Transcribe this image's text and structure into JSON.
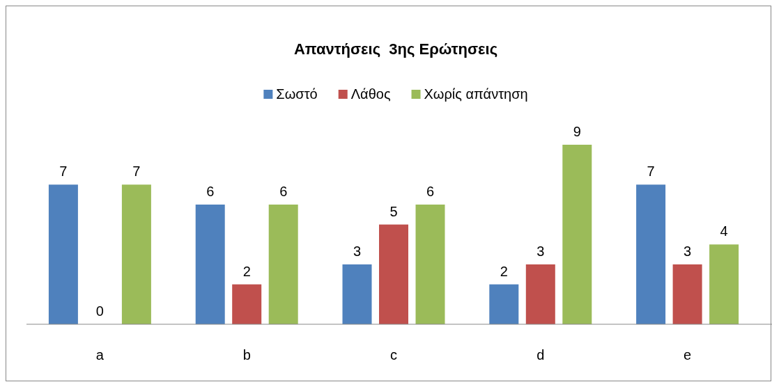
{
  "chart_data": {
    "type": "bar",
    "title": "Απαντήσεις  3ης Ερώτησεις",
    "categories": [
      "a",
      "b",
      "c",
      "d",
      "e"
    ],
    "series": [
      {
        "name": "Σωστό",
        "color": "#4f81bd",
        "values": [
          7,
          6,
          3,
          2,
          7
        ]
      },
      {
        "name": "Λάθος",
        "color": "#c0504d",
        "values": [
          0,
          2,
          5,
          3,
          3
        ]
      },
      {
        "name": "Χωρίς απάντηση",
        "color": "#9bbb59",
        "values": [
          7,
          6,
          6,
          9,
          4
        ]
      }
    ],
    "data_labels": true,
    "legend": "top"
  }
}
